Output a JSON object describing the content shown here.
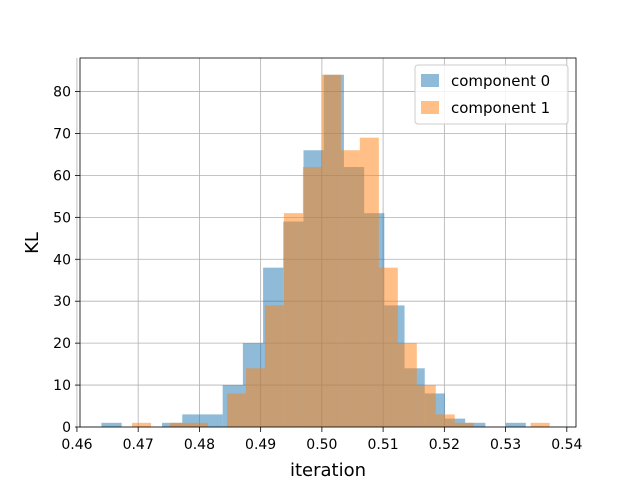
{
  "chart_data": {
    "type": "histogram",
    "title": "",
    "xlabel": "iteration",
    "ylabel": "KL",
    "xlim": [
      0.4605,
      0.5415
    ],
    "ylim": [
      0,
      88
    ],
    "xticks": [
      0.46,
      0.47,
      0.48,
      0.49,
      0.5,
      0.51,
      0.52,
      0.53,
      0.54
    ],
    "xtick_labels": [
      "0.46",
      "0.47",
      "0.48",
      "0.49",
      "0.50",
      "0.51",
      "0.52",
      "0.53",
      "0.54"
    ],
    "yticks": [
      0,
      10,
      20,
      30,
      40,
      50,
      60,
      70,
      80
    ],
    "ytick_labels": [
      "0",
      "10",
      "20",
      "30",
      "40",
      "50",
      "60",
      "70",
      "80"
    ],
    "grid": true,
    "legend_position": "top-right",
    "series": [
      {
        "name": "component 0",
        "color": "#1f77b4",
        "alpha": 0.5,
        "bin_edges": [
          0.464,
          0.4673,
          0.4706,
          0.4739,
          0.4772,
          0.4805,
          0.4838,
          0.4871,
          0.4904,
          0.4937,
          0.497,
          0.5003,
          0.5036,
          0.5069,
          0.5102,
          0.5135,
          0.5168,
          0.5201,
          0.5234,
          0.5267,
          0.53,
          0.5333
        ],
        "counts": [
          1,
          0,
          0,
          1,
          3,
          3,
          10,
          20,
          38,
          49,
          66,
          84,
          62,
          51,
          29,
          14,
          8,
          2,
          1,
          0,
          1
        ]
      },
      {
        "name": "component 1",
        "color": "#ff7f0e",
        "alpha": 0.5,
        "bin_edges": [
          0.469,
          0.4721,
          0.4752,
          0.4783,
          0.4814,
          0.4845,
          0.4876,
          0.4907,
          0.4938,
          0.4969,
          0.5,
          0.5031,
          0.5062,
          0.5093,
          0.5124,
          0.5155,
          0.5186,
          0.5217,
          0.5248,
          0.5279,
          0.531,
          0.5341,
          0.5372
        ],
        "counts": [
          1,
          0,
          1,
          1,
          0,
          8,
          14,
          29,
          51,
          62,
          84,
          66,
          69,
          38,
          20,
          10,
          3,
          1,
          0,
          0,
          0,
          1
        ]
      }
    ]
  }
}
